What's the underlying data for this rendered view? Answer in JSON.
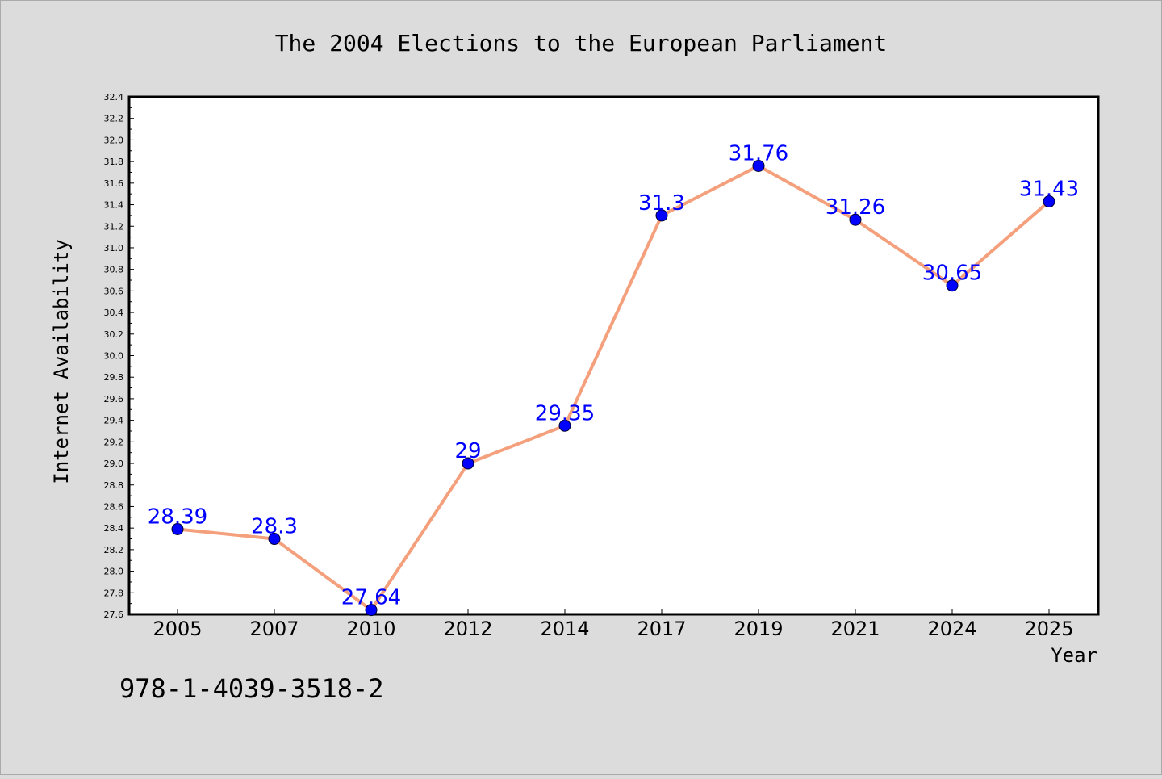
{
  "chart_data": {
    "type": "line",
    "title": "The 2004 Elections to the European Parliament",
    "xlabel": "Year",
    "ylabel": "Internet Availability",
    "categories": [
      "2005",
      "2007",
      "2010",
      "2012",
      "2014",
      "2017",
      "2019",
      "2021",
      "2024",
      "2025"
    ],
    "series": [
      {
        "values": [
          28.39,
          28.3,
          27.64,
          29,
          29.35,
          31.3,
          31.76,
          31.26,
          30.65,
          31.43
        ],
        "value_labels": [
          "28.39",
          "28.3",
          "27.64",
          "29",
          "29.35",
          "31.3",
          "31.76",
          "31.26",
          "30.65",
          "31.43"
        ],
        "line_color": "#f4a07c",
        "marker_color": "#0000ff"
      }
    ],
    "ylim": [
      27.6,
      32.4
    ],
    "yticks": [
      "27.6",
      "27.8",
      "28.0",
      "28.2",
      "28.4",
      "28.6",
      "28.8",
      "29.0",
      "29.2",
      "29.4",
      "29.6",
      "29.8",
      "30.0",
      "30.2",
      "30.4",
      "30.6",
      "30.8",
      "31.0",
      "31.2",
      "31.4",
      "31.6",
      "31.8",
      "32.0",
      "32.2",
      "32.4"
    ],
    "grid": false,
    "legend": "none"
  },
  "footnote": "978-1-4039-3518-2",
  "colors": {
    "background": "#dcdcdc",
    "plot_background": "#ffffff",
    "line": "#f4a07c",
    "marker": "#0000ff",
    "data_label": "#0000ff"
  }
}
